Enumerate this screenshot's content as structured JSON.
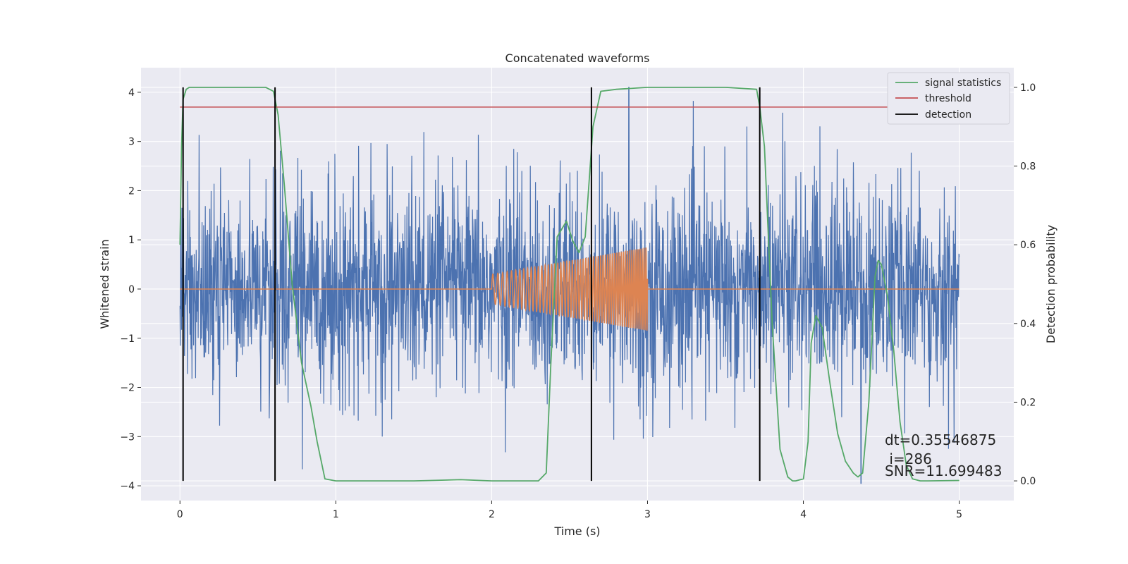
{
  "chart_data": {
    "type": "line",
    "title": "Concatenated waveforms",
    "xlabel": "Time (s)",
    "ylabel": "Whitened strain",
    "y2label": "Detection probability",
    "xlim": [
      -0.25,
      5.35
    ],
    "ylim": [
      -4.3,
      4.5
    ],
    "y2lim": [
      -0.05,
      1.05
    ],
    "xticks": [
      0,
      1,
      2,
      3,
      4,
      5
    ],
    "yticks": [
      -4,
      -3,
      -2,
      -1,
      0,
      1,
      2,
      3,
      4
    ],
    "y2ticks": [
      0.0,
      0.2,
      0.4,
      0.6,
      0.8,
      1.0
    ],
    "ytick_labels": [
      "−4",
      "−3",
      "−2",
      "−1",
      "0",
      "1",
      "2",
      "3",
      "4"
    ],
    "y2tick_labels": [
      "0.0",
      "0.2",
      "0.4",
      "0.6",
      "0.8",
      "1.0"
    ],
    "grid": true,
    "legend_position": "top-right",
    "colors": {
      "strain": "#4c72b0",
      "template": "#dd8452",
      "signal_statistics": "#55a868",
      "threshold": "#c44e52",
      "detection": "#000000",
      "background": "#eaeaf2",
      "grid": "#ffffff"
    },
    "legend": [
      {
        "label": "signal statistics",
        "color": "#55a868"
      },
      {
        "label": "threshold",
        "color": "#c44e52"
      },
      {
        "label": "detection",
        "color": "#000000"
      }
    ],
    "strain": {
      "x_range": [
        0,
        5
      ],
      "typical_amplitude": 1.0,
      "max_value": 4.1,
      "min_value": -3.95
    },
    "template": {
      "x_range": [
        2,
        3
      ],
      "amplitude_start": 0.3,
      "amplitude_end": 0.85,
      "frequency_start_hz": 30,
      "frequency_end_hz": 80
    },
    "signal_statistics": {
      "x": [
        0.0,
        0.01,
        0.02,
        0.04,
        0.06,
        0.1,
        0.3,
        0.55,
        0.6,
        0.63,
        0.67,
        0.72,
        0.78,
        0.84,
        0.88,
        0.93,
        1.0,
        1.5,
        1.8,
        2.0,
        2.3,
        2.35,
        2.38,
        2.42,
        2.48,
        2.52,
        2.56,
        2.6,
        2.65,
        2.7,
        2.8,
        3.0,
        3.5,
        3.7,
        3.72,
        3.75,
        3.8,
        3.85,
        3.9,
        3.93,
        3.95,
        4.0,
        4.03,
        4.05,
        4.08,
        4.12,
        4.17,
        4.22,
        4.27,
        4.32,
        4.35,
        4.38,
        4.42,
        4.46,
        4.48,
        4.5,
        4.54,
        4.58,
        4.62,
        4.66,
        4.7,
        4.75,
        4.8,
        5.0
      ],
      "y": [
        0.6,
        0.85,
        0.97,
        0.995,
        1.0,
        1.0,
        1.0,
        1.0,
        0.99,
        0.93,
        0.75,
        0.5,
        0.3,
        0.19,
        0.1,
        0.005,
        0.0,
        0.0,
        0.003,
        0.0,
        0.0,
        0.02,
        0.3,
        0.62,
        0.66,
        0.61,
        0.58,
        0.62,
        0.9,
        0.99,
        0.995,
        1.0,
        1.0,
        0.995,
        0.95,
        0.85,
        0.4,
        0.08,
        0.01,
        0.0,
        0.0,
        0.005,
        0.1,
        0.35,
        0.42,
        0.39,
        0.25,
        0.12,
        0.05,
        0.02,
        0.01,
        0.02,
        0.2,
        0.52,
        0.56,
        0.55,
        0.47,
        0.33,
        0.15,
        0.04,
        0.005,
        0.0,
        0.0,
        0.001
      ]
    },
    "threshold": {
      "value": 0.95
    },
    "detections": [
      0.02,
      0.61,
      2.64,
      3.72
    ],
    "annotations": [
      "dt=0.35546875",
      " i=286",
      "SNR=11.699483"
    ]
  }
}
